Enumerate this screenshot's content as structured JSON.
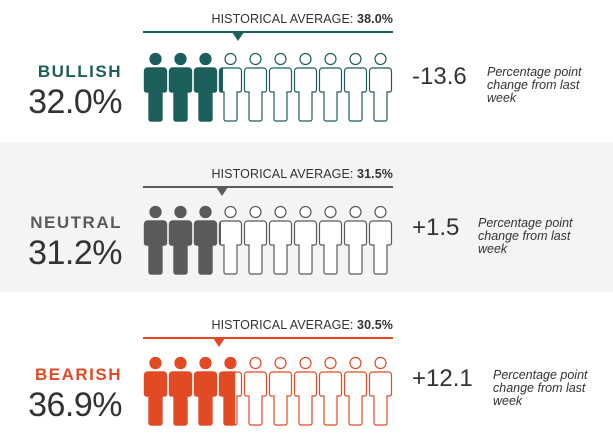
{
  "rows": [
    {
      "key": "bullish",
      "label": "BULLISH",
      "value": "32.0%",
      "value_pct": 32.0,
      "historical_label": "HISTORICAL AVERAGE: ",
      "historical_value": "38.0%",
      "historical_pct": 38.0,
      "change": "-13.6",
      "change_note": "Percentage point change from last week",
      "color": "#1c5e5a",
      "icon": "person-icon"
    },
    {
      "key": "neutral",
      "label": "NEUTRAL",
      "value": "31.2%",
      "value_pct": 31.2,
      "historical_label": "HISTORICAL AVERAGE: ",
      "historical_value": "31.5%",
      "historical_pct": 31.5,
      "change": "+1.5",
      "change_note": "Percentage point change from last week",
      "color": "#5a5a5a",
      "icon": "person-icon"
    },
    {
      "key": "bearish",
      "label": "BEARISH",
      "value": "36.9%",
      "value_pct": 36.9,
      "historical_label": "HISTORICAL AVERAGE: ",
      "historical_value": "30.5%",
      "historical_pct": 30.5,
      "change": "+12.1",
      "change_note": "Percentage point change from last week",
      "color": "#e24a25",
      "icon": "person-icon"
    }
  ]
}
